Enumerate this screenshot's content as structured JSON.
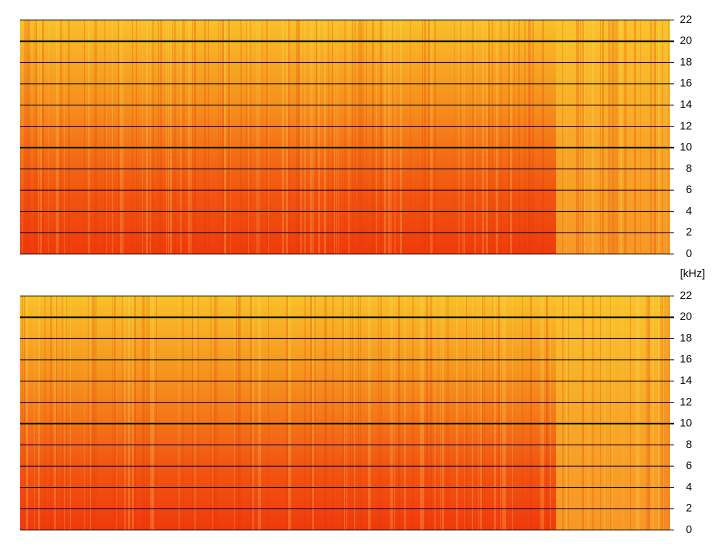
{
  "chart_data": [
    {
      "type": "spectrogram",
      "ylabel": "[kHz]",
      "ylim": [
        0,
        22
      ],
      "yticks": [
        0,
        2,
        4,
        6,
        8,
        10,
        12,
        14,
        16,
        18,
        20,
        22
      ],
      "grid": true
    },
    {
      "type": "spectrogram",
      "ylim": [
        0,
        22
      ],
      "yticks": [
        0,
        2,
        4,
        6,
        8,
        10,
        12,
        14,
        16,
        18,
        20,
        22
      ],
      "grid": true
    }
  ]
}
